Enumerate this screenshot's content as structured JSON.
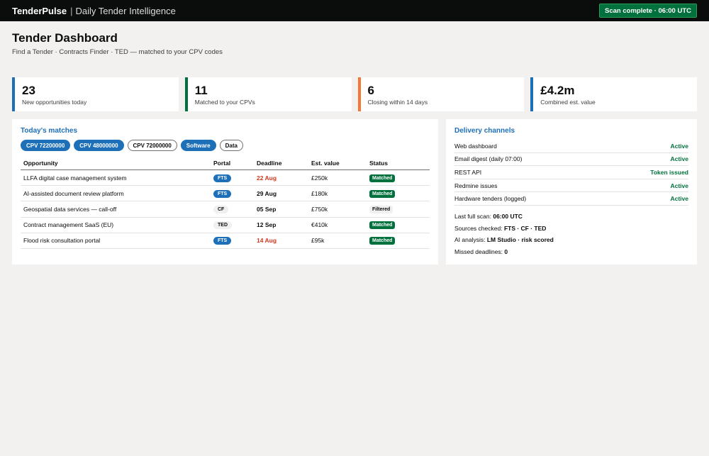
{
  "topbar": {
    "brand": "TenderPulse",
    "separator": "|",
    "subtitle": "Daily Tender Intelligence",
    "scan_status": "Scan complete · 06:00 UTC"
  },
  "page": {
    "title": "Tender Dashboard",
    "subtitle": "Find a Tender · Contracts Finder · TED — matched to your CPV codes"
  },
  "stats": [
    {
      "value": "23",
      "label": "New opportunities today"
    },
    {
      "value": "11",
      "label": "Matched to your CPVs"
    },
    {
      "value": "6",
      "label": "Closing within 14 days"
    },
    {
      "value": "£4.2m",
      "label": "Combined est. value"
    }
  ],
  "matches": {
    "title": "Today's matches",
    "chips": [
      "CPV 72200000",
      "CPV 48000000",
      "CPV 72000000",
      "Software",
      "Data"
    ],
    "columns": [
      "Opportunity",
      "Portal",
      "Deadline",
      "Est. value",
      "Status"
    ],
    "rows": [
      {
        "opportunity": "LLFA digital case management system",
        "portal": "FTS",
        "deadline": "22 Aug",
        "value": "£250k",
        "status": "Matched"
      },
      {
        "opportunity": "AI-assisted document review platform",
        "portal": "FTS",
        "deadline": "29 Aug",
        "value": "£180k",
        "status": "Matched"
      },
      {
        "opportunity": "Geospatial data services — call-off",
        "portal": "CF",
        "deadline": "05 Sep",
        "value": "£750k",
        "status": "Filtered"
      },
      {
        "opportunity": "Contract management SaaS (EU)",
        "portal": "TED",
        "deadline": "12 Sep",
        "value": "€410k",
        "status": "Matched"
      },
      {
        "opportunity": "Flood risk consultation portal",
        "portal": "FTS",
        "deadline": "14 Aug",
        "value": "£95k",
        "status": "Matched"
      }
    ]
  },
  "delivery": {
    "title": "Delivery channels",
    "channels": [
      {
        "name": "Web dashboard",
        "state": "Active"
      },
      {
        "name": "Email digest (daily 07:00)",
        "state": "Active"
      },
      {
        "name": "REST API",
        "state": "Token issued"
      },
      {
        "name": "Redmine issues",
        "state": "Active"
      },
      {
        "name": "Hardware tenders (logged)",
        "state": "Active"
      }
    ],
    "meta": [
      {
        "label": "Last full scan: ",
        "value": "06:00 UTC"
      },
      {
        "label": "Sources checked: ",
        "value": "FTS · CF · TED"
      },
      {
        "label": "AI analysis: ",
        "value": "LM Studio · risk scored"
      },
      {
        "label": "Missed deadlines: ",
        "value": "0"
      }
    ]
  },
  "colors": {
    "accent_blue": "#1d70b8",
    "green": "#00703c",
    "orange": "#f47738",
    "urgent_red": "#d4351c"
  }
}
